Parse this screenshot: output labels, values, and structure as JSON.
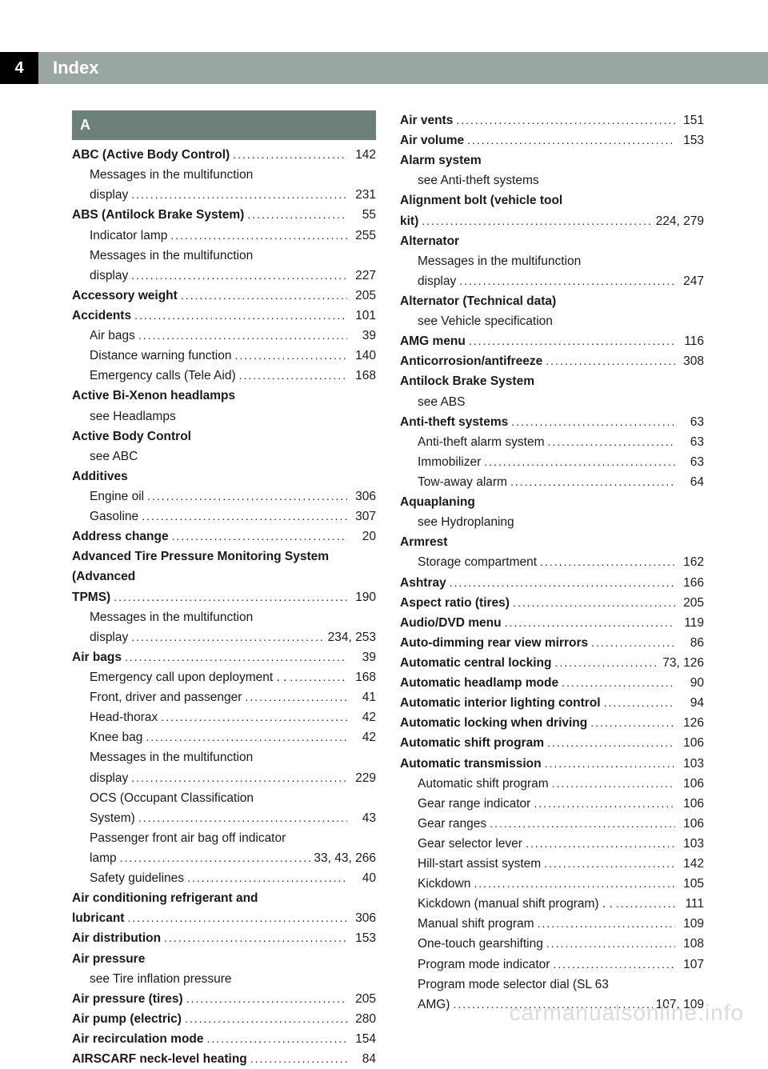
{
  "header": {
    "page_number": "4",
    "title": "Index"
  },
  "letter_heading": "A",
  "col1": [
    {
      "t": "bold",
      "label": "ABC (Active Body Control)",
      "page": "142"
    },
    {
      "t": "sub",
      "label": "Messages in the multifunction display",
      "page": "231",
      "wrap": true
    },
    {
      "t": "bold",
      "label": "ABS (Antilock Brake System)",
      "page": "55"
    },
    {
      "t": "sub",
      "label": "Indicator lamp",
      "page": "255"
    },
    {
      "t": "sub",
      "label": "Messages in the multifunction display",
      "page": "227",
      "wrap": true
    },
    {
      "t": "bold",
      "label": "Accessory weight",
      "page": "205"
    },
    {
      "t": "bold",
      "label": "Accidents",
      "page": "101"
    },
    {
      "t": "sub",
      "label": "Air bags",
      "page": "39"
    },
    {
      "t": "sub",
      "label": "Distance warning function",
      "page": "140"
    },
    {
      "t": "sub",
      "label": "Emergency calls (Tele Aid)",
      "page": "168"
    },
    {
      "t": "boldnoref",
      "label": "Active Bi-Xenon headlamps"
    },
    {
      "t": "subnoref",
      "label": "see Headlamps"
    },
    {
      "t": "boldnoref",
      "label": "Active Body Control"
    },
    {
      "t": "subnoref",
      "label": "see ABC"
    },
    {
      "t": "boldnoref",
      "label": "Additives"
    },
    {
      "t": "sub",
      "label": "Engine oil",
      "page": "306"
    },
    {
      "t": "sub",
      "label": "Gasoline",
      "page": "307"
    },
    {
      "t": "bold",
      "label": "Address change",
      "page": "20"
    },
    {
      "t": "bold",
      "label": "Advanced Tire Pressure Monitoring System (Advanced TPMS)",
      "page": "190",
      "wrap": true
    },
    {
      "t": "sub",
      "label": "Messages in the multifunction display",
      "page": "234, 253",
      "wrap": true
    },
    {
      "t": "bold",
      "label": "Air bags",
      "page": "39"
    },
    {
      "t": "sub",
      "label": "Emergency call upon deployment . .",
      "page": "168"
    },
    {
      "t": "sub",
      "label": "Front, driver and passenger",
      "page": "41"
    },
    {
      "t": "sub",
      "label": "Head-thorax",
      "page": "42"
    },
    {
      "t": "sub",
      "label": "Knee bag",
      "page": "42"
    },
    {
      "t": "sub",
      "label": "Messages in the multifunction display",
      "page": "229",
      "wrap": true
    },
    {
      "t": "sub",
      "label": "OCS (Occupant Classification System)",
      "page": "43",
      "wrap": true
    },
    {
      "t": "sub",
      "label": "Passenger front air bag off indicator lamp",
      "page": "33, 43, 266",
      "wrap": true
    },
    {
      "t": "sub",
      "label": "Safety guidelines",
      "page": "40"
    },
    {
      "t": "bold",
      "label": "Air conditioning refrigerant and lubricant",
      "page": "306",
      "wrap": true
    },
    {
      "t": "bold",
      "label": "Air distribution",
      "page": "153"
    },
    {
      "t": "boldnoref",
      "label": "Air pressure"
    },
    {
      "t": "subnoref",
      "label": "see Tire inflation pressure"
    },
    {
      "t": "bold",
      "label": "Air pressure (tires)",
      "page": "205"
    },
    {
      "t": "bold",
      "label": "Air pump (electric)",
      "page": "280"
    },
    {
      "t": "bold",
      "label": "Air recirculation mode",
      "page": "154"
    },
    {
      "t": "bold",
      "label": "AIRSCARF neck-level heating",
      "page": "84"
    }
  ],
  "col2": [
    {
      "t": "bold",
      "label": "Air vents",
      "page": "151"
    },
    {
      "t": "bold",
      "label": "Air volume",
      "page": "153"
    },
    {
      "t": "boldnoref",
      "label": "Alarm system"
    },
    {
      "t": "subnoref",
      "label": "see Anti-theft systems"
    },
    {
      "t": "bold",
      "label": "Alignment bolt (vehicle tool kit)",
      "page": "224, 279",
      "wrap": true
    },
    {
      "t": "boldnoref",
      "label": "Alternator"
    },
    {
      "t": "sub",
      "label": "Messages in the multifunction display",
      "page": "247",
      "wrap": true
    },
    {
      "t": "boldnoref",
      "label": "Alternator (Technical data)"
    },
    {
      "t": "subnoref",
      "label": "see Vehicle specification"
    },
    {
      "t": "bold",
      "label": "AMG menu",
      "page": "116"
    },
    {
      "t": "bold",
      "label": "Anticorrosion/antifreeze",
      "page": "308"
    },
    {
      "t": "boldnoref",
      "label": "Antilock Brake System"
    },
    {
      "t": "subnoref",
      "label": "see ABS"
    },
    {
      "t": "bold",
      "label": "Anti-theft systems",
      "page": "63"
    },
    {
      "t": "sub",
      "label": "Anti-theft alarm system",
      "page": "63"
    },
    {
      "t": "sub",
      "label": "Immobilizer",
      "page": "63"
    },
    {
      "t": "sub",
      "label": "Tow-away alarm",
      "page": "64"
    },
    {
      "t": "boldnoref",
      "label": "Aquaplaning"
    },
    {
      "t": "subnoref",
      "label": "see Hydroplaning"
    },
    {
      "t": "boldnoref",
      "label": "Armrest"
    },
    {
      "t": "sub",
      "label": "Storage compartment",
      "page": "162"
    },
    {
      "t": "bold",
      "label": "Ashtray",
      "page": "166"
    },
    {
      "t": "bold",
      "label": "Aspect ratio (tires)",
      "page": "205"
    },
    {
      "t": "bold",
      "label": "Audio/DVD menu",
      "page": "119"
    },
    {
      "t": "bold",
      "label": "Auto-dimming rear view mirrors",
      "page": "86"
    },
    {
      "t": "bold",
      "label": "Automatic central locking",
      "page": "73, 126"
    },
    {
      "t": "bold",
      "label": "Automatic headlamp mode",
      "page": "90"
    },
    {
      "t": "bold",
      "label": "Automatic interior lighting control",
      "page": "94"
    },
    {
      "t": "bold",
      "label": "Automatic locking when driving",
      "page": "126"
    },
    {
      "t": "bold",
      "label": "Automatic shift program",
      "page": "106"
    },
    {
      "t": "bold",
      "label": "Automatic transmission",
      "page": "103"
    },
    {
      "t": "sub",
      "label": "Automatic shift program",
      "page": "106"
    },
    {
      "t": "sub",
      "label": "Gear range indicator",
      "page": "106"
    },
    {
      "t": "sub",
      "label": "Gear ranges",
      "page": "106"
    },
    {
      "t": "sub",
      "label": "Gear selector lever",
      "page": "103"
    },
    {
      "t": "sub",
      "label": "Hill-start assist system",
      "page": "142"
    },
    {
      "t": "sub",
      "label": "Kickdown",
      "page": "105"
    },
    {
      "t": "sub",
      "label": "Kickdown (manual shift program) . .",
      "page": "111"
    },
    {
      "t": "sub",
      "label": "Manual shift program",
      "page": "109"
    },
    {
      "t": "sub",
      "label": "One-touch gearshifting",
      "page": "108"
    },
    {
      "t": "sub",
      "label": "Program mode indicator",
      "page": "107"
    },
    {
      "t": "sub",
      "label": "Program mode selector dial (SL 63 AMG)",
      "page": "107, 109",
      "wrap": true
    }
  ],
  "watermark": "carmanualsonline.info"
}
